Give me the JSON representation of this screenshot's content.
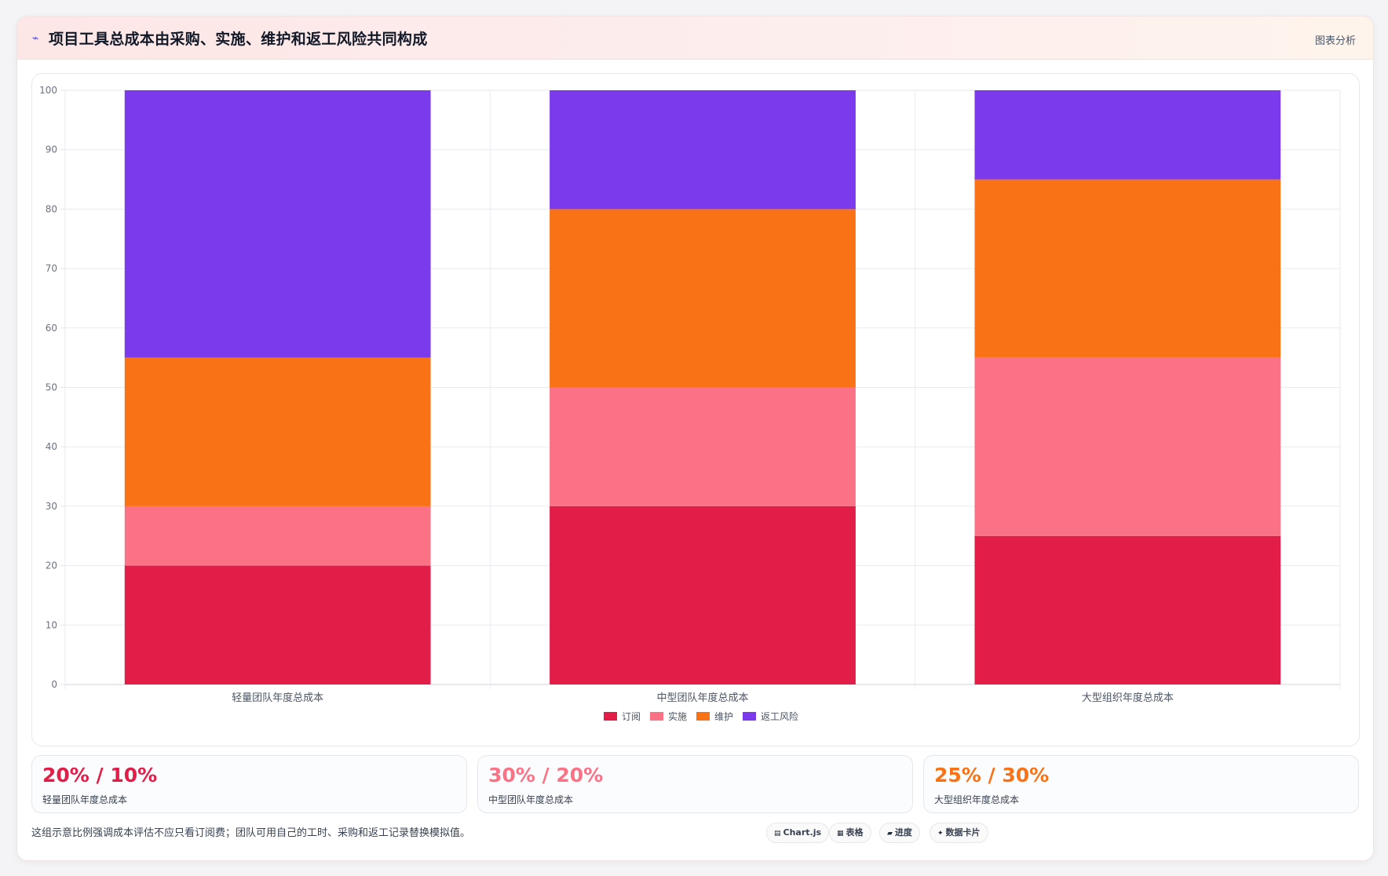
{
  "header": {
    "icon": "sparkle-icon",
    "title": "项目工具总成本由采购、实施、维护和返工风险共同构成",
    "subtitle": "图表分析"
  },
  "chart_data": {
    "type": "bar",
    "stacked": true,
    "categories": [
      "轻量团队年度总成本",
      "中型团队年度总成本",
      "大型组织年度总成本"
    ],
    "series": [
      {
        "name": "订阅",
        "color": "#e11d48",
        "values": [
          20,
          30,
          25
        ]
      },
      {
        "name": "实施",
        "color": "#fb7185",
        "values": [
          10,
          20,
          30
        ]
      },
      {
        "name": "维护",
        "color": "#f97316",
        "values": [
          25,
          30,
          30
        ]
      },
      {
        "name": "返工风险",
        "color": "#7c3aed",
        "values": [
          45,
          20,
          15
        ]
      }
    ],
    "ylim": [
      0,
      100
    ],
    "yticks": [
      0,
      10,
      20,
      30,
      40,
      50,
      60,
      70,
      80,
      90,
      100
    ],
    "grid": true,
    "legend": "bottom"
  },
  "stats": [
    {
      "value": "20% / 10%",
      "label": "轻量团队年度总成本",
      "color": "#e11d48"
    },
    {
      "value": "30% / 20%",
      "label": "中型团队年度总成本",
      "color": "#fb7185"
    },
    {
      "value": "25% / 30%",
      "label": "大型组织年度总成本",
      "color": "#f97316"
    }
  ],
  "footnote": "这组示意比例强调成本评估不应只看订阅费；团队可用自己的工时、采购和返工记录替换模拟值。",
  "pills": [
    {
      "icon": "chart-icon",
      "glyph": "▤",
      "label": "Chart.js"
    },
    {
      "icon": "table-icon",
      "glyph": "▦",
      "label": "表格"
    },
    {
      "icon": "progress-icon",
      "glyph": "▰",
      "label": "进度"
    },
    {
      "icon": "card-icon",
      "glyph": "✦",
      "label": "数据卡片"
    }
  ]
}
